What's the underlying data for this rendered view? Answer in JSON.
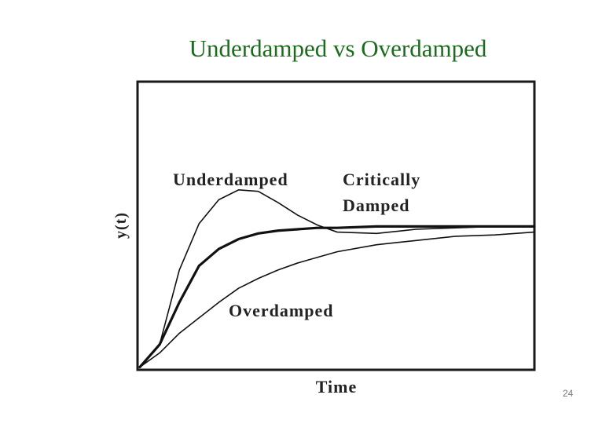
{
  "chart_data": {
    "type": "line",
    "title": "Underdamped vs Overdamped",
    "x_label": "Time",
    "y_label": "y(t)",
    "xlim": [
      0,
      10
    ],
    "ylim": [
      -0.02,
      2.03
    ],
    "x": [
      0,
      0.5,
      1,
      1.5,
      2,
      2.5,
      3,
      3.5,
      4,
      4.5,
      5,
      6,
      7,
      8,
      9,
      10
    ],
    "series": [
      {
        "name": "Underdamped",
        "color": "#111111",
        "values": [
          0,
          0.16,
          0.69,
          1.02,
          1.19,
          1.26,
          1.25,
          1.17,
          1.08,
          1.01,
          0.96,
          0.95,
          0.98,
          0.99,
          1.0,
          1.0
        ]
      },
      {
        "name": "Critically Damped",
        "color": "#111111",
        "values": [
          0,
          0.16,
          0.46,
          0.72,
          0.84,
          0.91,
          0.95,
          0.97,
          0.98,
          0.99,
          0.99,
          1.0,
          1.0,
          1.0,
          1.0,
          1.0
        ]
      },
      {
        "name": "Overdamped",
        "color": "#111111",
        "values": [
          0,
          0.1,
          0.24,
          0.35,
          0.46,
          0.56,
          0.63,
          0.69,
          0.74,
          0.78,
          0.82,
          0.87,
          0.9,
          0.93,
          0.94,
          0.96
        ]
      }
    ]
  },
  "page_number": "24"
}
